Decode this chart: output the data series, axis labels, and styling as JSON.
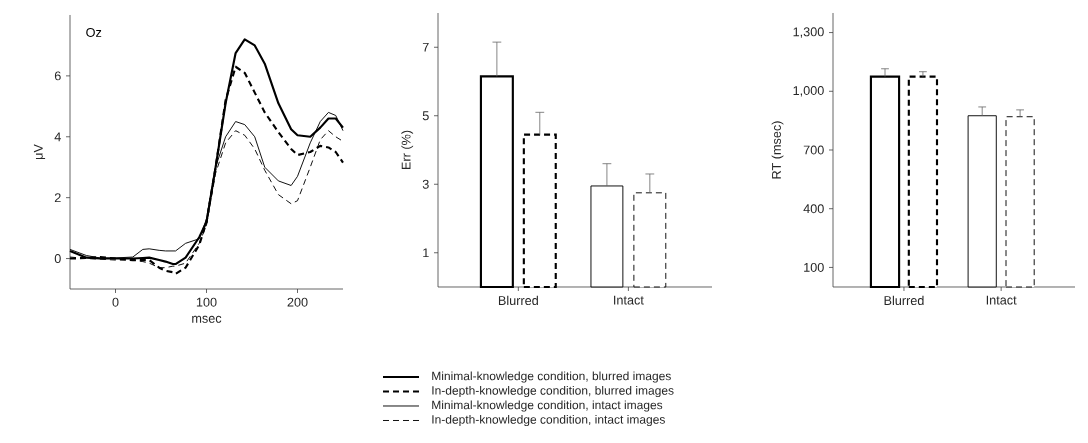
{
  "chart_data": [
    {
      "type": "line",
      "xlabel": "msec",
      "ylabel": "μV",
      "annotations": [
        "Oz"
      ],
      "xlim": [
        -50,
        250
      ],
      "ylim": [
        -1,
        8
      ],
      "xticks": [
        0,
        100,
        200
      ],
      "yticks": [
        0,
        2,
        4,
        6
      ],
      "legend": "bottom",
      "x": [
        -50,
        -32,
        -17,
        0,
        19,
        30,
        37,
        48,
        55,
        63,
        66,
        77,
        92,
        100,
        110,
        121,
        132,
        142,
        153,
        164,
        179,
        193,
        200,
        214,
        225,
        234,
        242,
        250
      ],
      "series": [
        {
          "name": "Minimal-knowledge condition, blurred images",
          "color": "#000000",
          "line_style": "solid",
          "values": [
            0.25,
            0.03,
            0,
            0,
            0,
            0.02,
            0.03,
            -0.05,
            -0.1,
            -0.18,
            -0.18,
            0.03,
            0.7,
            1.2,
            3.0,
            5.1,
            6.75,
            7.2,
            7.0,
            6.4,
            5.1,
            4.25,
            4.05,
            4.0,
            4.3,
            4.6,
            4.6,
            4.3
          ]
        },
        {
          "name": "In-depth-knowledge condition, blurred images",
          "color": "#000000",
          "line_style": "dashed",
          "values": [
            0.0,
            0.02,
            0.05,
            0,
            -0.05,
            -0.05,
            -0.05,
            -0.3,
            -0.4,
            -0.45,
            -0.5,
            -0.3,
            0.45,
            1.2,
            3.0,
            5.2,
            6.3,
            6.1,
            5.45,
            4.8,
            4.15,
            3.6,
            3.4,
            3.5,
            3.7,
            3.65,
            3.5,
            3.15
          ]
        },
        {
          "name": "Minimal-knowledge condition, intact images",
          "color": "#000000",
          "line_style": "solid",
          "values": [
            0.3,
            0.1,
            0.02,
            0.02,
            0.05,
            0.3,
            0.32,
            0.27,
            0.25,
            0.25,
            0.25,
            0.5,
            0.65,
            1.3,
            3.0,
            4.0,
            4.5,
            4.4,
            4.0,
            3.0,
            2.55,
            2.4,
            2.7,
            3.8,
            4.5,
            4.8,
            4.7,
            4.2
          ]
        },
        {
          "name": "In-depth-knowledge condition, intact images",
          "color": "#000000",
          "line_style": "dashed",
          "values": [
            0.05,
            0,
            -0.02,
            -0.05,
            -0.05,
            -0.1,
            -0.15,
            -0.3,
            -0.3,
            -0.25,
            -0.25,
            -0.15,
            0.5,
            1.1,
            2.8,
            3.8,
            4.2,
            4.05,
            3.6,
            2.9,
            2.1,
            1.8,
            1.9,
            3.0,
            3.9,
            4.2,
            4.0,
            3.85
          ]
        }
      ]
    },
    {
      "type": "bar",
      "ylabel": "Err (%)",
      "categories": [
        "Blurred",
        "Intact"
      ],
      "ylim": [
        0,
        8
      ],
      "yticks": [
        1,
        3,
        5,
        7
      ],
      "series": [
        {
          "color": "#000000",
          "line_style": "solid",
          "values": [
            6.15,
            null
          ],
          "errors": [
            [
              6.15,
              7.15
            ],
            null
          ]
        },
        {
          "color": "#000000",
          "line_style": "dashed",
          "values": [
            4.45,
            null
          ],
          "errors": [
            [
              4.45,
              5.1
            ],
            null
          ]
        },
        {
          "color": "#000000",
          "line_style": "solid",
          "values": [
            null,
            2.95
          ],
          "errors": [
            null,
            [
              2.95,
              3.6
            ]
          ]
        },
        {
          "color": "#000000",
          "line_style": "dashed",
          "values": [
            null,
            2.75
          ],
          "errors": [
            null,
            [
              2.75,
              3.3
            ]
          ]
        }
      ]
    },
    {
      "type": "bar",
      "ylabel": "RT (msec)",
      "categories": [
        "Blurred",
        "Intact"
      ],
      "ylim": [
        0,
        1400
      ],
      "yticks": [
        100,
        400,
        700,
        {
          "value": 1000,
          "label": "1,000"
        },
        {
          "value": 1300,
          "label": "1,300"
        }
      ],
      "series": [
        {
          "color": "#000000",
          "line_style": "solid",
          "values": [
            1075,
            null
          ],
          "errors": [
            [
              1075,
              1115
            ],
            null
          ]
        },
        {
          "color": "#000000",
          "line_style": "dashed",
          "values": [
            1075,
            null
          ],
          "errors": [
            [
              1075,
              1100
            ],
            null
          ]
        },
        {
          "color": "#000000",
          "line_style": "solid",
          "values": [
            null,
            875
          ],
          "errors": [
            null,
            [
              875,
              920
            ]
          ]
        },
        {
          "color": "#000000",
          "line_style": "dashed",
          "values": [
            null,
            870
          ],
          "errors": [
            null,
            [
              870,
              905
            ]
          ]
        }
      ]
    }
  ]
}
